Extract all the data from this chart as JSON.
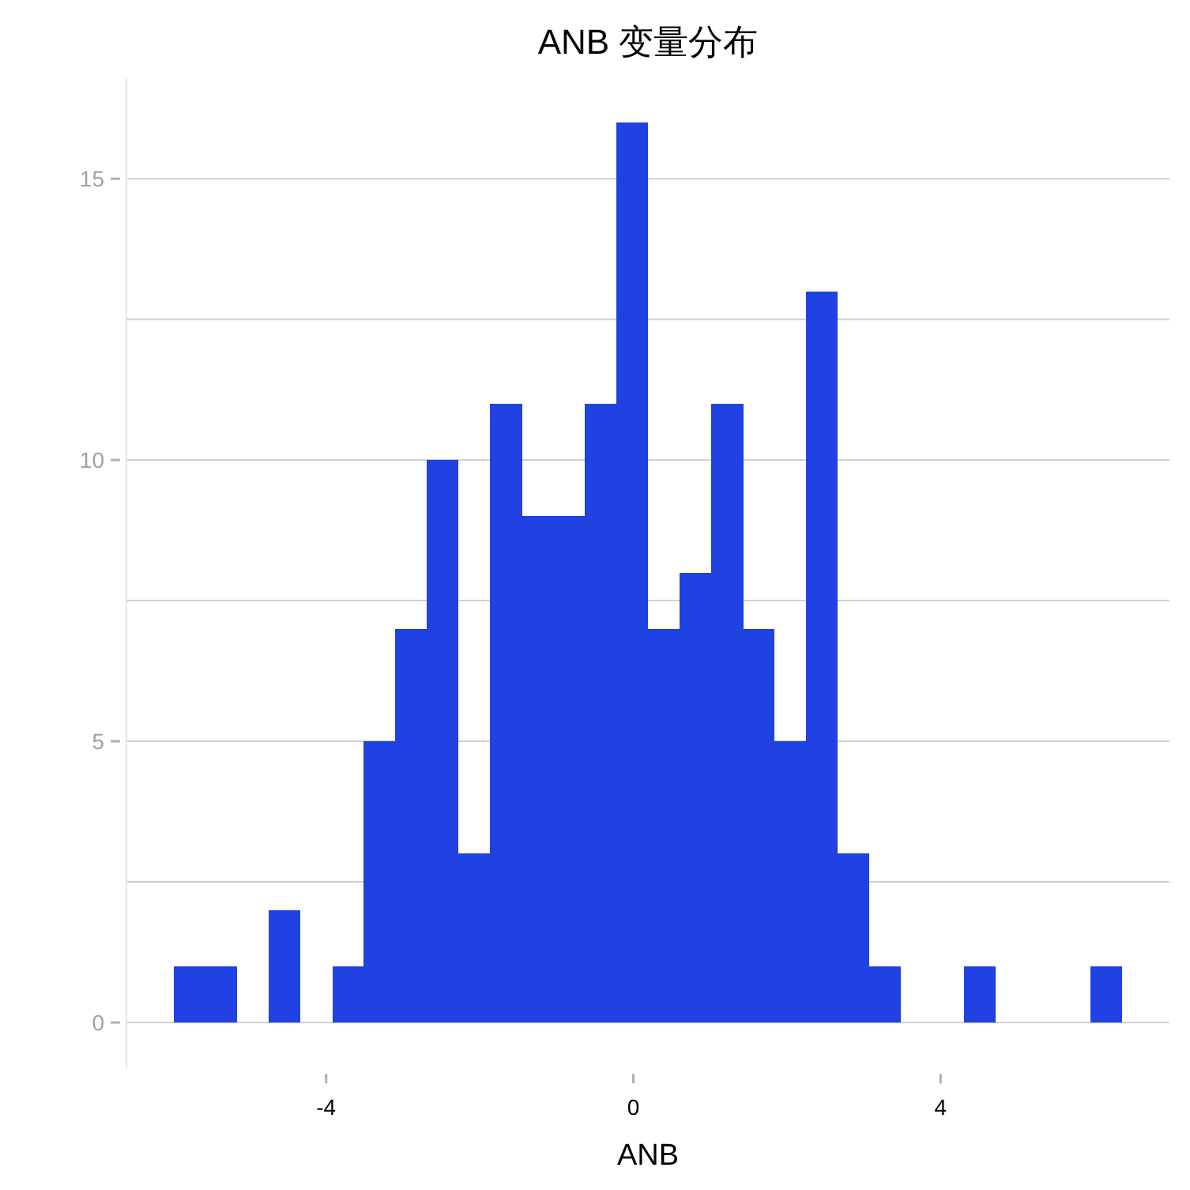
{
  "chart_data": {
    "type": "histogram",
    "title": "ANB 变量分布",
    "xlabel": "ANB",
    "bins": [
      -5.98,
      -5.57,
      -5.16,
      -4.75,
      -4.34,
      -3.92,
      -3.51,
      -3.1,
      -2.69,
      -2.28,
      -1.87,
      -1.45,
      -1.04,
      -0.63,
      -0.22,
      0.19,
      0.6,
      1.01,
      1.43,
      1.84,
      2.25,
      2.66,
      3.07,
      3.48,
      4.31,
      4.72,
      5.95,
      6.36
    ],
    "values": [
      1,
      1,
      0,
      2,
      0,
      1,
      5,
      7,
      10,
      3,
      11,
      9,
      9,
      11,
      16,
      7,
      8,
      11,
      7,
      5,
      13,
      3,
      1,
      0,
      1,
      0,
      1
    ],
    "color": "#2042e3",
    "xlim": [
      -6.6,
      6.98
    ],
    "xticks": [
      -4,
      0,
      4
    ],
    "ylim": [
      -0.8,
      16.8
    ],
    "yticks": [
      0,
      {
        "value": 2.5,
        "label": null
      },
      5,
      {
        "value": 7.5,
        "label": null
      },
      10,
      {
        "value": 12.5,
        "label": null
      },
      15
    ],
    "grid": "y"
  }
}
